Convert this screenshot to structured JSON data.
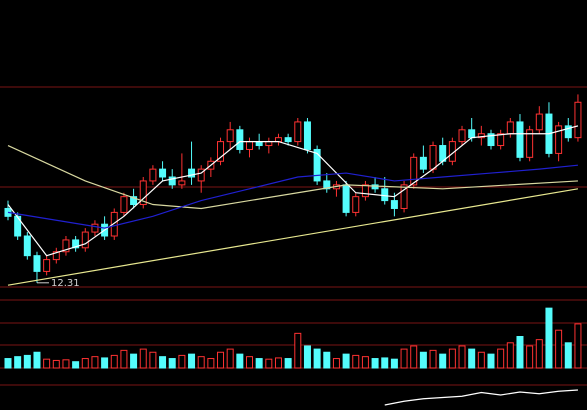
{
  "chart_data": {
    "type": "candlestick",
    "up_color": "#ff3232",
    "down_color": "#54fcfc",
    "ylim": [
      12,
      19.5
    ],
    "candles": [
      [
        14.2,
        14.4,
        13.9,
        14.0
      ],
      [
        14.0,
        14.1,
        13.4,
        13.5
      ],
      [
        13.5,
        13.6,
        12.9,
        13.0
      ],
      [
        13.0,
        13.1,
        12.31,
        12.6
      ],
      [
        12.6,
        13.0,
        12.5,
        12.9
      ],
      [
        12.9,
        13.2,
        12.8,
        13.1
      ],
      [
        13.1,
        13.5,
        13.0,
        13.4
      ],
      [
        13.4,
        13.5,
        13.1,
        13.2
      ],
      [
        13.2,
        13.7,
        13.1,
        13.6
      ],
      [
        13.6,
        13.9,
        13.5,
        13.8
      ],
      [
        13.8,
        14.0,
        13.4,
        13.5
      ],
      [
        13.5,
        14.2,
        13.4,
        14.1
      ],
      [
        14.1,
        14.6,
        14.0,
        14.5
      ],
      [
        14.5,
        14.7,
        14.2,
        14.3
      ],
      [
        14.3,
        15.0,
        14.2,
        14.9
      ],
      [
        14.9,
        15.3,
        14.8,
        15.2
      ],
      [
        15.2,
        15.4,
        14.9,
        15.0
      ],
      [
        15.0,
        15.2,
        14.7,
        14.8
      ],
      [
        14.8,
        15.6,
        14.7,
        14.9
      ],
      [
        15.2,
        15.9,
        14.8,
        15.0
      ],
      [
        14.9,
        15.3,
        14.6,
        15.2
      ],
      [
        15.2,
        15.5,
        15.0,
        15.4
      ],
      [
        15.4,
        16.0,
        15.3,
        15.9
      ],
      [
        15.9,
        16.4,
        15.7,
        16.2
      ],
      [
        16.2,
        16.3,
        15.6,
        15.7
      ],
      [
        15.7,
        16.0,
        15.5,
        15.9
      ],
      [
        15.9,
        16.1,
        15.7,
        15.8
      ],
      [
        15.8,
        16.0,
        15.6,
        15.9
      ],
      [
        15.9,
        16.1,
        15.8,
        16.0
      ],
      [
        16.0,
        16.1,
        15.8,
        15.9
      ],
      [
        15.9,
        16.5,
        15.8,
        16.4
      ],
      [
        16.4,
        16.5,
        15.6,
        15.7
      ],
      [
        15.7,
        15.8,
        14.8,
        14.9
      ],
      [
        14.9,
        15.1,
        14.6,
        14.7
      ],
      [
        14.7,
        14.9,
        14.5,
        14.8
      ],
      [
        14.8,
        14.9,
        14.0,
        14.1
      ],
      [
        14.1,
        14.6,
        14.0,
        14.5
      ],
      [
        14.5,
        14.9,
        14.4,
        14.8
      ],
      [
        14.8,
        15.0,
        14.6,
        14.7
      ],
      [
        14.7,
        15.0,
        14.3,
        14.4
      ],
      [
        14.4,
        14.6,
        14.0,
        14.2
      ],
      [
        14.2,
        14.9,
        14.1,
        14.8
      ],
      [
        14.8,
        15.6,
        14.7,
        15.5
      ],
      [
        15.5,
        15.8,
        15.1,
        15.2
      ],
      [
        15.2,
        15.9,
        15.1,
        15.8
      ],
      [
        15.8,
        16.0,
        15.3,
        15.4
      ],
      [
        15.4,
        16.0,
        15.3,
        15.9
      ],
      [
        15.9,
        16.3,
        15.8,
        16.2
      ],
      [
        16.2,
        16.5,
        15.9,
        16.0
      ],
      [
        16.0,
        16.3,
        15.8,
        16.1
      ],
      [
        16.1,
        16.2,
        15.7,
        15.8
      ],
      [
        15.8,
        16.2,
        15.7,
        16.1
      ],
      [
        16.1,
        16.5,
        16.0,
        16.4
      ],
      [
        16.4,
        16.6,
        15.4,
        15.5
      ],
      [
        15.5,
        16.3,
        15.4,
        16.2
      ],
      [
        16.2,
        16.8,
        16.1,
        16.6
      ],
      [
        16.6,
        16.9,
        15.5,
        15.6
      ],
      [
        15.6,
        16.4,
        15.4,
        16.3
      ],
      [
        16.3,
        16.5,
        15.9,
        16.0
      ],
      [
        16.0,
        17.1,
        15.9,
        16.9
      ]
    ],
    "lines": [
      {
        "color": "#ffffff",
        "x": [
          0,
          4,
          8,
          12,
          16,
          20,
          24,
          28,
          32,
          36,
          40,
          44,
          48,
          52,
          56,
          59
        ],
        "values": [
          14.3,
          13.0,
          13.3,
          14.0,
          14.9,
          15.1,
          15.9,
          15.9,
          15.6,
          14.6,
          14.5,
          15.2,
          16.0,
          16.1,
          16.1,
          16.3
        ]
      },
      {
        "color": "#d8d8a0",
        "x": [
          0,
          8,
          15,
          20,
          30,
          35,
          45,
          59
        ],
        "values": [
          15.8,
          14.9,
          14.3,
          14.2,
          14.6,
          14.8,
          14.7,
          14.9
        ]
      },
      {
        "color": "#2020d0",
        "x": [
          0,
          5,
          10,
          15,
          20,
          25,
          30,
          35,
          40,
          45,
          50,
          55,
          59
        ],
        "values": [
          14.1,
          13.9,
          13.7,
          14.0,
          14.4,
          14.7,
          15.0,
          15.1,
          14.9,
          15.0,
          15.1,
          15.2,
          15.3
        ]
      },
      {
        "color": "#e8e890",
        "x": [
          0,
          59
        ],
        "values": [
          12.25,
          14.7
        ]
      }
    ],
    "annotations": [
      {
        "text": "12.31",
        "x": 3,
        "y": 12.31
      }
    ],
    "vlim": [
      0,
      100
    ],
    "volumes": [
      15,
      18,
      20,
      25,
      14,
      12,
      13,
      10,
      15,
      18,
      16,
      20,
      28,
      22,
      30,
      25,
      18,
      15,
      20,
      22,
      18,
      15,
      25,
      30,
      22,
      18,
      15,
      14,
      16,
      15,
      55,
      35,
      30,
      25,
      15,
      22,
      20,
      18,
      15,
      16,
      14,
      30,
      35,
      25,
      28,
      22,
      30,
      35,
      30,
      25,
      22,
      30,
      40,
      50,
      35,
      45,
      95,
      60,
      40,
      70
    ],
    "ilim": [
      0,
      100
    ],
    "indicator": {
      "color": "#ffffff",
      "x": [
        39,
        41,
        43,
        45,
        47,
        49,
        51,
        53,
        55,
        57,
        59
      ],
      "values": [
        20,
        35,
        45,
        50,
        55,
        70,
        60,
        72,
        65,
        75,
        80
      ]
    }
  }
}
